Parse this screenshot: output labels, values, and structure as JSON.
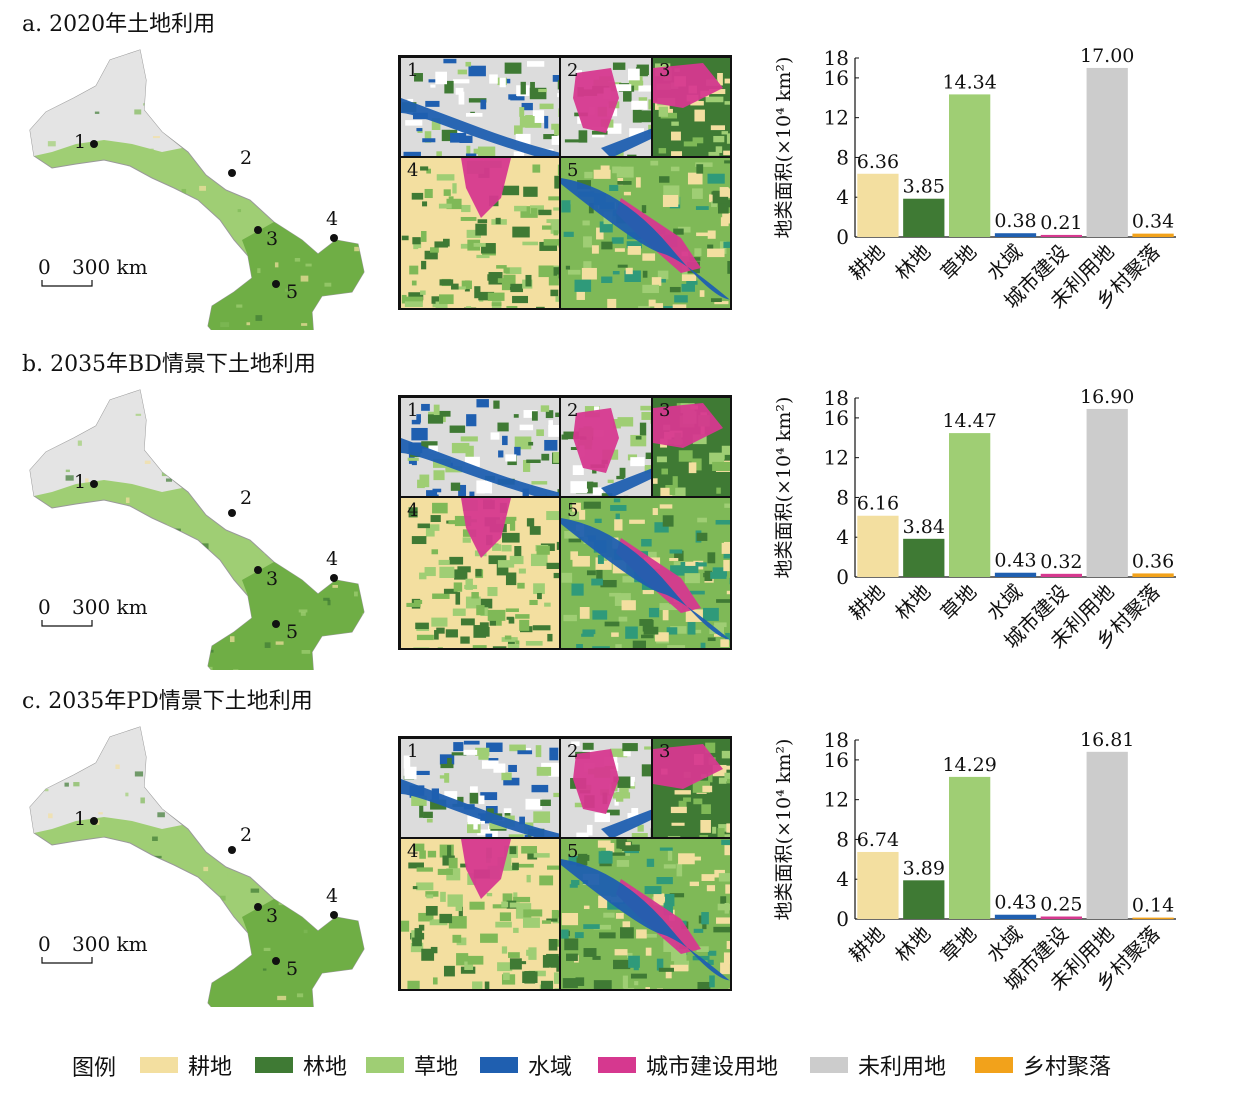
{
  "colors": {
    "cropland": "#f3dfa0",
    "forest": "#3f7a34",
    "grassland": "#9fce74",
    "water": "#1f5fb0",
    "urban": "#d6388f",
    "unused": "#cccccc",
    "rural": "#f2a21b"
  },
  "scale_bar": {
    "zero": "0",
    "distance": "300 km"
  },
  "site_labels": [
    "1",
    "2",
    "3",
    "4",
    "5"
  ],
  "panels": [
    {
      "title": "a. 2020年土地利用"
    },
    {
      "title": "b. 2035年BD情景下土地利用"
    },
    {
      "title": "c. 2035年PD情景下土地利用"
    }
  ],
  "legend": {
    "title": "图例",
    "items": [
      {
        "label": "耕地",
        "color": "#f3dfa0"
      },
      {
        "label": "林地",
        "color": "#3f7a34"
      },
      {
        "label": "草地",
        "color": "#9fce74"
      },
      {
        "label": "水域",
        "color": "#1f5fb0"
      },
      {
        "label": "城市建设用地",
        "color": "#d6388f"
      },
      {
        "label": "未利用地",
        "color": "#cccccc"
      },
      {
        "label": "乡村聚落",
        "color": "#f2a21b"
      }
    ]
  },
  "chart_data": [
    {
      "type": "bar",
      "categories": [
        "耕地",
        "林地",
        "草地",
        "水域",
        "城市建设",
        "未利用地",
        "乡村聚落"
      ],
      "values": [
        6.36,
        3.85,
        14.34,
        0.38,
        0.21,
        17.0,
        0.34
      ],
      "value_labels": [
        "6.36",
        "3.85",
        "14.34",
        "0.38",
        "0.21",
        "17.00",
        "0.34"
      ],
      "ylabel": "地类面积(×10⁴ km²)",
      "ylim": [
        0,
        18
      ],
      "yticks": [
        0,
        4,
        8,
        12,
        16,
        18
      ],
      "grid": false
    },
    {
      "type": "bar",
      "categories": [
        "耕地",
        "林地",
        "草地",
        "水域",
        "城市建设",
        "未利用地",
        "乡村聚落"
      ],
      "values": [
        6.16,
        3.84,
        14.47,
        0.43,
        0.32,
        16.9,
        0.36
      ],
      "value_labels": [
        "6.16",
        "3.84",
        "14.47",
        "0.43",
        "0.32",
        "16.90",
        "0.36"
      ],
      "ylabel": "地类面积(×10⁴ km²)",
      "ylim": [
        0,
        18
      ],
      "yticks": [
        0,
        4,
        8,
        12,
        16,
        18
      ],
      "grid": false
    },
    {
      "type": "bar",
      "categories": [
        "耕地",
        "林地",
        "草地",
        "水域",
        "城市建设",
        "未利用地",
        "乡村聚落"
      ],
      "values": [
        6.74,
        3.89,
        14.29,
        0.43,
        0.25,
        16.81,
        0.14
      ],
      "value_labels": [
        "6.74",
        "3.89",
        "14.29",
        "0.43",
        "0.25",
        "16.81",
        "0.14"
      ],
      "ylabel": "地类面积(×10⁴ km²)",
      "ylim": [
        0,
        18
      ],
      "yticks": [
        0,
        4,
        8,
        12,
        16,
        18
      ],
      "grid": false
    }
  ]
}
